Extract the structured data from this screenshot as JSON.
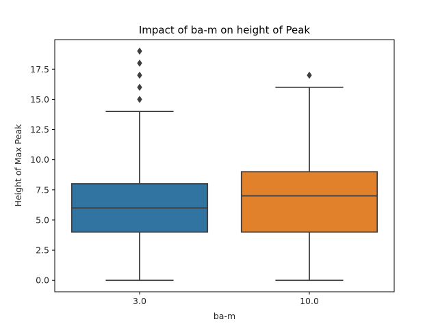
{
  "chart_data": {
    "type": "box",
    "title": "Impact of ba-m on height of Peak",
    "xlabel": "ba-m",
    "ylabel": "Height of Max Peak",
    "ylim": [
      -0.95,
      19.95
    ],
    "yticks": [
      "0.0",
      "2.5",
      "5.0",
      "7.5",
      "10.0",
      "12.5",
      "15.0",
      "17.5"
    ],
    "grid": false,
    "categories": [
      "3.0",
      "10.0"
    ],
    "boxes": [
      {
        "category": "3.0",
        "min": 0,
        "q1": 4,
        "median": 6,
        "q3": 8,
        "max": 14,
        "outliers": [
          15,
          16,
          17,
          18,
          19
        ],
        "color": "#3274a1"
      },
      {
        "category": "10.0",
        "min": 0,
        "q1": 4,
        "median": 7,
        "q3": 9,
        "max": 16,
        "outliers": [
          17
        ],
        "color": "#e1812c"
      }
    ]
  }
}
